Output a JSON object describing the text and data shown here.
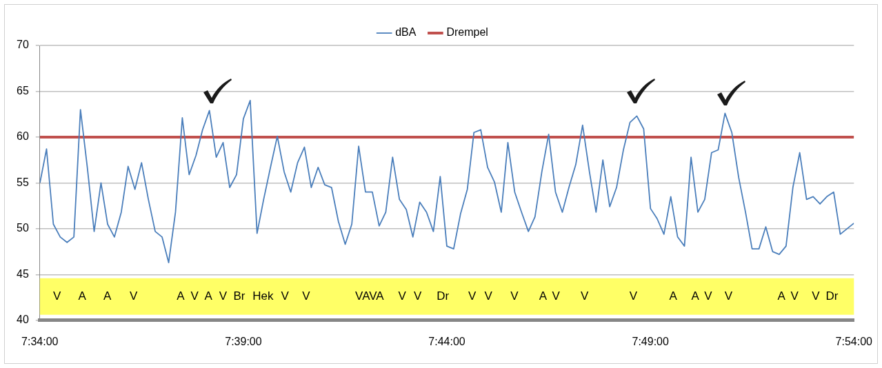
{
  "chart_data": {
    "type": "line",
    "xlim": [
      7.566667,
      7.9
    ],
    "xticks": [
      {
        "value": 7.566667,
        "label": "7:34:00"
      },
      {
        "value": 7.65,
        "label": "7:39:00"
      },
      {
        "value": 7.733333,
        "label": "7:44:00"
      },
      {
        "value": 7.816667,
        "label": "7:49:00"
      },
      {
        "value": 7.9,
        "label": "7:54:00"
      }
    ],
    "ylim": [
      40,
      70
    ],
    "yticks": [
      40,
      45,
      50,
      55,
      60,
      65,
      70
    ],
    "grid": "y",
    "legend": "top",
    "marker": "none",
    "line_style": "solid",
    "series": [
      {
        "name": "dBA",
        "color": "#4a7ebb",
        "x": [
          7.5667,
          7.5694,
          7.5722,
          7.575,
          7.5778,
          7.5806,
          7.5833,
          7.5861,
          7.5889,
          7.5917,
          7.5944,
          7.5972,
          7.6,
          7.6028,
          7.6056,
          7.6083,
          7.6111,
          7.6139,
          7.6167,
          7.6194,
          7.6222,
          7.625,
          7.6278,
          7.6306,
          7.6333,
          7.6361,
          7.6389,
          7.6417,
          7.6444,
          7.6472,
          7.65,
          7.6528,
          7.6556,
          7.6583,
          7.6611,
          7.6639,
          7.6667,
          7.6694,
          7.6722,
          7.675,
          7.6778,
          7.6806,
          7.6833,
          7.6861,
          7.6889,
          7.6917,
          7.6944,
          7.6972,
          7.7,
          7.7028,
          7.7056,
          7.7083,
          7.7111,
          7.7139,
          7.7167,
          7.7194,
          7.7222,
          7.725,
          7.7278,
          7.7306,
          7.7333,
          7.7361,
          7.7389,
          7.7417,
          7.7444,
          7.7472,
          7.75,
          7.7528,
          7.7556,
          7.7583,
          7.7611,
          7.7639,
          7.7667,
          7.7694,
          7.7722,
          7.775,
          7.7778,
          7.7806,
          7.7833,
          7.7861,
          7.7889,
          7.7917,
          7.7944,
          7.7972,
          7.8,
          7.8028,
          7.8056,
          7.8083,
          7.8111,
          7.8139,
          7.8167,
          7.8194,
          7.8222,
          7.825,
          7.8278,
          7.8306,
          7.8333,
          7.8361,
          7.8389,
          7.8417,
          7.8444,
          7.8472,
          7.85,
          7.8528,
          7.8556,
          7.8583,
          7.8611,
          7.8639,
          7.8667,
          7.8694,
          7.8722,
          7.875,
          7.8778,
          7.8806,
          7.8833,
          7.8861,
          7.8889,
          7.8917,
          7.8944,
          7.8972,
          7.9
        ],
        "values": [
          55,
          58.7,
          50.5,
          49.1,
          48.5,
          49.1,
          63,
          56.7,
          49.7,
          55,
          50.5,
          49.1,
          51.8,
          56.8,
          54.3,
          57.2,
          53.2,
          49.7,
          49.1,
          46.3,
          51.8,
          62.1,
          55.9,
          58,
          60.8,
          62.9,
          57.8,
          59.4,
          54.5,
          55.9,
          62,
          64,
          49.5,
          53.2,
          56.7,
          60.1,
          56.2,
          54,
          57.2,
          58.9,
          54.5,
          56.7,
          54.8,
          54.5,
          50.8,
          48.3,
          50.5,
          59,
          54,
          54,
          50.3,
          51.8,
          57.8,
          53.2,
          52.1,
          49.1,
          52.9,
          51.8,
          49.7,
          55.7,
          48.1,
          47.8,
          51.6,
          54.3,
          60.5,
          60.8,
          56.7,
          55.1,
          51.8,
          59.4,
          54,
          51.8,
          49.7,
          51.3,
          56.2,
          60.3,
          54,
          51.8,
          54.5,
          57,
          61.3,
          56.2,
          51.8,
          57.5,
          52.4,
          54.5,
          58.6,
          61.6,
          62.3,
          60.9,
          52.2,
          51.1,
          49.4,
          53.5,
          49.1,
          48.1,
          57.8,
          51.8,
          53.2,
          58.3,
          58.6,
          62.6,
          60.5,
          55.6,
          51.8,
          47.8,
          47.8,
          50.2,
          47.5,
          47.2,
          48.1,
          54.5,
          58.3,
          53.2,
          53.5,
          52.7,
          53.5,
          54,
          49.4,
          50,
          50.6
        ]
      },
      {
        "name": "Drempel",
        "color": "#c0504d",
        "x": [
          7.566667,
          7.9
        ],
        "values": [
          60,
          60
        ]
      }
    ],
    "bands": [
      {
        "axis": "y",
        "from": 40.6,
        "to": 44.6,
        "color": "#ffff66"
      }
    ],
    "annotations": [
      "V",
      "A",
      "A",
      "V",
      "A",
      "V",
      "A",
      "V",
      "Br",
      "Hek",
      "V",
      "V",
      "VAVA",
      "V",
      "V",
      "Dr",
      "V",
      "V",
      "V",
      "A",
      "V",
      "V",
      "V",
      "A",
      "A",
      "V",
      "V",
      "A",
      "V",
      "V",
      "Dr"
    ]
  }
}
